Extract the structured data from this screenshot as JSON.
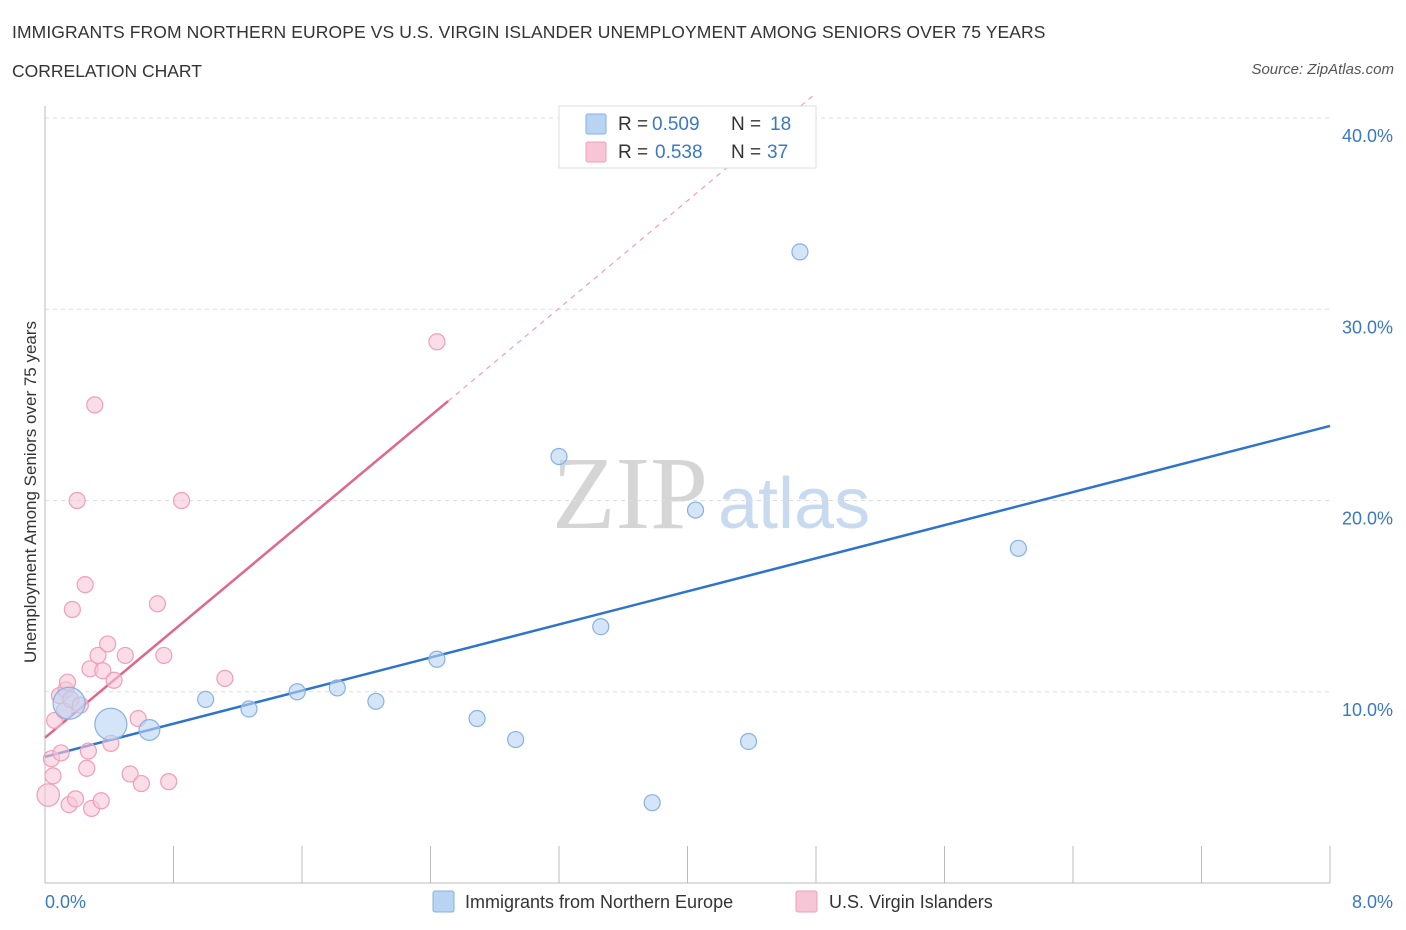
{
  "header": {
    "title": "IMMIGRANTS FROM NORTHERN EUROPE VS U.S. VIRGIN ISLANDER UNEMPLOYMENT AMONG SENIORS OVER 75 YEARS",
    "subtitle": "CORRELATION CHART",
    "source": "Source: ZipAtlas.com"
  },
  "watermark": {
    "part1": "ZIP",
    "part2": "atlas"
  },
  "colors": {
    "blue_fill": "#b9d3f3",
    "blue_stroke": "#86b1e4",
    "blue_line": "#2f74cc",
    "pink_fill": "#f7c6d6",
    "pink_stroke": "#ef9eb9",
    "pink_line": "#e0668f",
    "grid": "#dddddd",
    "tick_text": "#3a78c4"
  },
  "legend": {
    "rows": [
      {
        "r_label": "R =",
        "r_value": "0.509",
        "n_label": "N =",
        "n_value": "18"
      },
      {
        "r_label": "R =",
        "r_value": "0.538",
        "n_label": "N =",
        "n_value": "37"
      }
    ]
  },
  "chart_data": {
    "type": "scatter",
    "title": "IMMIGRANTS FROM NORTHERN EUROPE VS U.S. VIRGIN ISLANDER UNEMPLOYMENT AMONG SENIORS OVER 75 YEARS",
    "xlabel": "",
    "ylabel": "Unemployment Among Seniors over 75 years",
    "xlim": [
      0,
      8
    ],
    "ylim": [
      0,
      40
    ],
    "x_tick_labels": [
      "0.0%",
      "8.0%"
    ],
    "y_ticks": [
      10,
      20,
      30,
      40
    ],
    "y_tick_labels": [
      "10.0%",
      "20.0%",
      "30.0%",
      "40.0%"
    ],
    "grid": true,
    "series": [
      {
        "name": "Immigrants from Northern Europe",
        "color": "#b9d3f3",
        "R": 0.509,
        "N": 18,
        "points": [
          {
            "x": 0.15,
            "y": 9.4,
            "s": 2
          },
          {
            "x": 0.41,
            "y": 8.3,
            "s": 2
          },
          {
            "x": 0.65,
            "y": 8.0,
            "s": 1.3
          },
          {
            "x": 1.0,
            "y": 9.6,
            "s": 1
          },
          {
            "x": 1.27,
            "y": 9.1,
            "s": 1
          },
          {
            "x": 1.57,
            "y": 10.0,
            "s": 1
          },
          {
            "x": 1.82,
            "y": 10.2,
            "s": 1
          },
          {
            "x": 2.06,
            "y": 9.5,
            "s": 1
          },
          {
            "x": 2.44,
            "y": 11.7,
            "s": 1
          },
          {
            "x": 2.69,
            "y": 8.6,
            "s": 1
          },
          {
            "x": 2.93,
            "y": 7.5,
            "s": 1
          },
          {
            "x": 3.2,
            "y": 22.3,
            "s": 1
          },
          {
            "x": 3.46,
            "y": 13.4,
            "s": 1
          },
          {
            "x": 3.78,
            "y": 4.2,
            "s": 1
          },
          {
            "x": 4.05,
            "y": 19.5,
            "s": 1
          },
          {
            "x": 4.38,
            "y": 7.4,
            "s": 1
          },
          {
            "x": 4.7,
            "y": 33.0,
            "s": 1
          },
          {
            "x": 6.06,
            "y": 17.5,
            "s": 1
          }
        ],
        "trend": {
          "x0": 0.0,
          "y0": 6.6,
          "x1": 8.0,
          "y1": 23.9
        }
      },
      {
        "name": "U.S. Virgin Islanders",
        "color": "#f7c6d6",
        "R": 0.538,
        "N": 37,
        "points": [
          {
            "x": 0.02,
            "y": 4.6,
            "s": 1.4
          },
          {
            "x": 0.04,
            "y": 6.5,
            "s": 1
          },
          {
            "x": 0.05,
            "y": 5.6,
            "s": 1
          },
          {
            "x": 0.06,
            "y": 8.5,
            "s": 1
          },
          {
            "x": 0.09,
            "y": 9.8,
            "s": 1
          },
          {
            "x": 0.1,
            "y": 6.8,
            "s": 1
          },
          {
            "x": 0.12,
            "y": 9.0,
            "s": 1
          },
          {
            "x": 0.13,
            "y": 10.1,
            "s": 1
          },
          {
            "x": 0.14,
            "y": 10.5,
            "s": 1
          },
          {
            "x": 0.15,
            "y": 4.1,
            "s": 1
          },
          {
            "x": 0.16,
            "y": 9.6,
            "s": 1
          },
          {
            "x": 0.17,
            "y": 14.3,
            "s": 1
          },
          {
            "x": 0.19,
            "y": 4.4,
            "s": 1
          },
          {
            "x": 0.2,
            "y": 20.0,
            "s": 1
          },
          {
            "x": 0.22,
            "y": 9.3,
            "s": 1
          },
          {
            "x": 0.25,
            "y": 15.6,
            "s": 1
          },
          {
            "x": 0.26,
            "y": 6.0,
            "s": 1
          },
          {
            "x": 0.27,
            "y": 6.9,
            "s": 1
          },
          {
            "x": 0.28,
            "y": 11.2,
            "s": 1
          },
          {
            "x": 0.29,
            "y": 3.9,
            "s": 1
          },
          {
            "x": 0.31,
            "y": 25.0,
            "s": 1
          },
          {
            "x": 0.33,
            "y": 11.9,
            "s": 1
          },
          {
            "x": 0.35,
            "y": 4.3,
            "s": 1
          },
          {
            "x": 0.36,
            "y": 11.1,
            "s": 1
          },
          {
            "x": 0.39,
            "y": 12.5,
            "s": 1
          },
          {
            "x": 0.41,
            "y": 7.3,
            "s": 1
          },
          {
            "x": 0.43,
            "y": 10.6,
            "s": 1
          },
          {
            "x": 0.5,
            "y": 11.9,
            "s": 1
          },
          {
            "x": 0.53,
            "y": 5.7,
            "s": 1
          },
          {
            "x": 0.58,
            "y": 8.6,
            "s": 1
          },
          {
            "x": 0.6,
            "y": 5.2,
            "s": 1
          },
          {
            "x": 0.7,
            "y": 14.6,
            "s": 1
          },
          {
            "x": 0.74,
            "y": 11.9,
            "s": 1
          },
          {
            "x": 0.77,
            "y": 5.3,
            "s": 1
          },
          {
            "x": 0.85,
            "y": 20.0,
            "s": 1
          },
          {
            "x": 1.12,
            "y": 10.7,
            "s": 1
          },
          {
            "x": 2.44,
            "y": 28.3,
            "s": 1
          }
        ],
        "trend": {
          "x0": 0.0,
          "y0": 7.6,
          "x1": 2.51,
          "y1": 25.2
        },
        "trend_dashed": {
          "x0": 2.51,
          "y0": 25.2,
          "x1": 4.8,
          "y1": 41.3
        }
      }
    ]
  }
}
